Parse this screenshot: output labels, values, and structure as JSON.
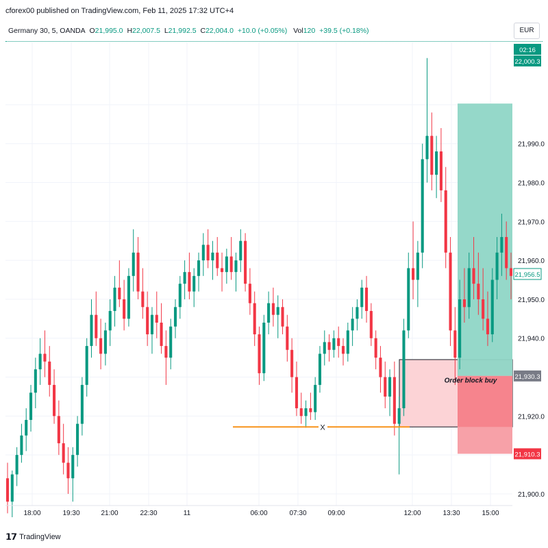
{
  "publisher": "cforex00 published on TradingView.com, Feb 11, 2025 17:32 UTC+4",
  "legend": {
    "symbol": "Germany 30, 5, OANDA",
    "open_label": "O",
    "open": "21,995.0",
    "high_label": "H",
    "high": "22,007.5",
    "low_label": "L",
    "low": "21,992.5",
    "close_label": "C",
    "close": "22,004.0",
    "change": "+10.0 (+0.05%)",
    "vol_label": "Vol",
    "vol": "120",
    "vol_change": "+39.5 (+0.18%)"
  },
  "currency": "EUR",
  "footer": {
    "brand": "TradingView"
  },
  "colors": {
    "up": "#089981",
    "down": "#f23645",
    "target_zone": "#8fd6c6",
    "stop_zone": "#f7a1a8",
    "order_block": "#fcd3d6",
    "horizontal_line": "#f7931a"
  },
  "chart_data": {
    "type": "candlestick",
    "y_axis": {
      "ylim": [
        21897,
        22016
      ],
      "ticks": [
        21900,
        21910,
        21920,
        21930,
        21940,
        21950,
        21960,
        21970,
        21980,
        21990,
        22000
      ],
      "tick_labels": [
        "21,900.0",
        "",
        "21,920.0",
        "",
        "21,940.0",
        "21,950.0",
        "21,960.0",
        "21,970.0",
        "21,980.0",
        "21,990.0",
        ""
      ]
    },
    "x_axis": {
      "tick_labels": [
        "18:00",
        "19:30",
        "21:00",
        "22:30",
        "11",
        "06:00",
        "07:30",
        "09:00",
        "12:00",
        "13:30",
        "15:00"
      ]
    },
    "price_tags": [
      {
        "label": "02:16",
        "value": 22004.0,
        "color": "#089981"
      },
      {
        "label": "22,000.3",
        "value": 22000.3,
        "color": "#089981"
      },
      {
        "label": "21,956.5",
        "value": 21956.5,
        "color": "#ffffff"
      },
      {
        "label": "21,930.3",
        "value": 21930.3,
        "color": "#787b86"
      },
      {
        "label": "21,910.3",
        "value": 21910.3,
        "color": "#f23645"
      }
    ],
    "long_position": {
      "entry": 21930.3,
      "target": 22000.3,
      "stop": 21910.3
    },
    "order_block": {
      "top": 21934.5,
      "bottom": 21917.2,
      "label": "Order block buy"
    },
    "marked_level": {
      "value": 21917.2,
      "label": "X"
    },
    "ohlc": [
      [
        21904,
        21908,
        21895,
        21898
      ],
      [
        21898,
        21906,
        21894,
        21905
      ],
      [
        21905,
        21912,
        21902,
        21910
      ],
      [
        21910,
        21918,
        21908,
        21915
      ],
      [
        21915,
        21922,
        21911,
        21919
      ],
      [
        21919,
        21928,
        21916,
        21926
      ],
      [
        21926,
        21935,
        21922,
        21932
      ],
      [
        21932,
        21940,
        21928,
        21936
      ],
      [
        21936,
        21942,
        21930,
        21934
      ],
      [
        21934,
        21938,
        21925,
        21928
      ],
      [
        21928,
        21932,
        21918,
        21920
      ],
      [
        21920,
        21924,
        21910,
        21913
      ],
      [
        21913,
        21918,
        21905,
        21908
      ],
      [
        21908,
        21912,
        21900,
        21904
      ],
      [
        21904,
        21912,
        21898,
        21910
      ],
      [
        21910,
        21920,
        21907,
        21918
      ],
      [
        21918,
        21930,
        21915,
        21928
      ],
      [
        21928,
        21940,
        21925,
        21938
      ],
      [
        21938,
        21950,
        21935,
        21946
      ],
      [
        21946,
        21952,
        21938,
        21940
      ],
      [
        21940,
        21945,
        21932,
        21936
      ],
      [
        21936,
        21944,
        21933,
        21942
      ],
      [
        21942,
        21950,
        21938,
        21947
      ],
      [
        21947,
        21956,
        21943,
        21953
      ],
      [
        21953,
        21960,
        21948,
        21950
      ],
      [
        21950,
        21955,
        21942,
        21945
      ],
      [
        21945,
        21958,
        21943,
        21956
      ],
      [
        21956,
        21968,
        21952,
        21962
      ],
      [
        21962,
        21966,
        21950,
        21952
      ],
      [
        21952,
        21958,
        21945,
        21948
      ],
      [
        21948,
        21952,
        21938,
        21941
      ],
      [
        21941,
        21948,
        21936,
        21946
      ],
      [
        21946,
        21952,
        21940,
        21944
      ],
      [
        21944,
        21949,
        21936,
        21938
      ],
      [
        21938,
        21942,
        21928,
        21935
      ],
      [
        21935,
        21945,
        21932,
        21943
      ],
      [
        21943,
        21950,
        21940,
        21948
      ],
      [
        21948,
        21956,
        21945,
        21954
      ],
      [
        21954,
        21960,
        21950,
        21957
      ],
      [
        21957,
        21962,
        21950,
        21952
      ],
      [
        21952,
        21958,
        21948,
        21956
      ],
      [
        21956,
        21962,
        21952,
        21960
      ],
      [
        21960,
        21967,
        21956,
        21964
      ],
      [
        21964,
        21968,
        21958,
        21960
      ],
      [
        21960,
        21965,
        21955,
        21962
      ],
      [
        21962,
        21966,
        21956,
        21958
      ],
      [
        21958,
        21962,
        21952,
        21957
      ],
      [
        21957,
        21963,
        21954,
        21961
      ],
      [
        21961,
        21966,
        21955,
        21957
      ],
      [
        21957,
        21962,
        21952,
        21960
      ],
      [
        21960,
        21968,
        21957,
        21965
      ],
      [
        21965,
        21967,
        21952,
        21954
      ],
      [
        21954,
        21958,
        21946,
        21949
      ],
      [
        21949,
        21952,
        21938,
        21941
      ],
      [
        21941,
        21943,
        21928,
        21931
      ],
      [
        21931,
        21946,
        21929,
        21944
      ],
      [
        21944,
        21952,
        21941,
        21949
      ],
      [
        21949,
        21953,
        21943,
        21946
      ],
      [
        21946,
        21951,
        21940,
        21948
      ],
      [
        21948,
        21950,
        21941,
        21943
      ],
      [
        21943,
        21946,
        21934,
        21937
      ],
      [
        21937,
        21940,
        21926,
        21930
      ],
      [
        21930,
        21934,
        21920,
        21922
      ],
      [
        21922,
        21926,
        21918,
        21920
      ],
      [
        21920,
        21924,
        21917,
        21922
      ],
      [
        21922,
        21926,
        21919,
        21921
      ],
      [
        21921,
        21930,
        21919,
        21928
      ],
      [
        21928,
        21938,
        21926,
        21936
      ],
      [
        21936,
        21942,
        21933,
        21939
      ],
      [
        21939,
        21941,
        21934,
        21937
      ],
      [
        21937,
        21942,
        21935,
        21940
      ],
      [
        21940,
        21943,
        21935,
        21938
      ],
      [
        21938,
        21940,
        21933,
        21936
      ],
      [
        21936,
        21944,
        21934,
        21942
      ],
      [
        21942,
        21948,
        21938,
        21945
      ],
      [
        21945,
        21950,
        21942,
        21948
      ],
      [
        21948,
        21955,
        21945,
        21953
      ],
      [
        21953,
        21956,
        21944,
        21947
      ],
      [
        21947,
        21949,
        21938,
        21940
      ],
      [
        21940,
        21942,
        21932,
        21935
      ],
      [
        21935,
        21938,
        21926,
        21930
      ],
      [
        21930,
        21934,
        21922,
        21925
      ],
      [
        21925,
        21932,
        21920,
        21930
      ],
      [
        21930,
        21934,
        21915,
        21918
      ],
      [
        21918,
        21925,
        21905,
        21922
      ],
      [
        21922,
        21945,
        21920,
        21942
      ],
      [
        21942,
        21962,
        21940,
        21958
      ],
      [
        21958,
        21970,
        21950,
        21955
      ],
      [
        21955,
        21965,
        21948,
        21962
      ],
      [
        21962,
        21990,
        21958,
        21986
      ],
      [
        21986,
        22012,
        21980,
        21992
      ],
      [
        21992,
        21998,
        21978,
        21982
      ],
      [
        21982,
        21992,
        21976,
        21988
      ],
      [
        21988,
        21994,
        21975,
        21978
      ],
      [
        21978,
        21984,
        21958,
        21962
      ],
      [
        21962,
        21966,
        21938,
        21942
      ],
      [
        21942,
        21948,
        21928,
        21935
      ],
      [
        21935,
        21955,
        21932,
        21950
      ],
      [
        21950,
        21958,
        21944,
        21948
      ],
      [
        21948,
        21962,
        21945,
        21958
      ],
      [
        21958,
        21966,
        21950,
        21954
      ],
      [
        21954,
        21962,
        21946,
        21950
      ],
      [
        21950,
        21958,
        21942,
        21945
      ],
      [
        21945,
        21952,
        21938,
        21941
      ],
      [
        21941,
        21958,
        21939,
        21955
      ],
      [
        21955,
        21966,
        21950,
        21962
      ],
      [
        21962,
        21972,
        21956,
        21966
      ],
      [
        21966,
        21970,
        21955,
        21958
      ],
      [
        21958,
        21962,
        21950,
        21956
      ]
    ]
  }
}
